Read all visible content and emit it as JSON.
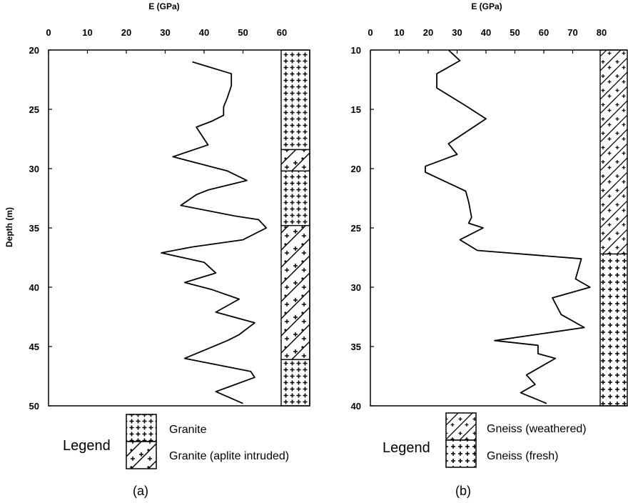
{
  "chart_data": [
    {
      "type": "line",
      "panel_label": "(a)",
      "xlabel": "E (GPa)",
      "ylabel": "Depth (m)",
      "xticks": [
        0,
        10,
        20,
        30,
        40,
        50,
        60
      ],
      "yticks": [
        20,
        25,
        30,
        35,
        40,
        45,
        50
      ],
      "xlim": [
        0,
        68
      ],
      "ylim": [
        20,
        50
      ],
      "y_inverted": true,
      "x_axis_position": "top",
      "grid": false,
      "series": [
        {
          "x": [
            37,
            47,
            47,
            46,
            45,
            45,
            42,
            38,
            40,
            41,
            32,
            46,
            51,
            41,
            38,
            34,
            48,
            54,
            56,
            50,
            37,
            29,
            40,
            43,
            35,
            42,
            49,
            43,
            53,
            49,
            46,
            35,
            52,
            53,
            43,
            50
          ],
          "y": [
            21.0,
            22.0,
            23.0,
            24.0,
            24.8,
            25.5,
            26.0,
            26.5,
            27.5,
            28.0,
            29.0,
            30.2,
            31.0,
            31.8,
            32.2,
            33.1,
            34.0,
            34.3,
            35.0,
            36.0,
            36.6,
            37.1,
            37.9,
            38.8,
            39.6,
            40.2,
            41.0,
            42.1,
            43.0,
            44.0,
            44.5,
            46.0,
            47.1,
            47.6,
            48.8,
            49.8
          ]
        }
      ],
      "lithology": [
        {
          "from": 20.0,
          "to": 28.4,
          "unit": "Granite"
        },
        {
          "from": 28.4,
          "to": 30.2,
          "unit": "Granite (aplite intruded)"
        },
        {
          "from": 30.2,
          "to": 34.8,
          "unit": "Granite"
        },
        {
          "from": 34.8,
          "to": 46.1,
          "unit": "Granite (aplite intruded)"
        },
        {
          "from": 46.1,
          "to": 50.0,
          "unit": "Granite"
        }
      ],
      "legend": {
        "title": "Legend",
        "items": [
          "Granite",
          "Granite (aplite intruded)"
        ],
        "placement": "bottom"
      }
    },
    {
      "type": "line",
      "panel_label": "(b)",
      "xlabel": "E (GPa)",
      "ylabel": "",
      "xticks": [
        0,
        10,
        20,
        30,
        40,
        50,
        60,
        70,
        80
      ],
      "yticks": [
        10,
        15,
        20,
        25,
        30,
        35,
        40
      ],
      "xlim": [
        0,
        90
      ],
      "ylim": [
        10,
        40
      ],
      "y_inverted": true,
      "x_axis_position": "top",
      "grid": false,
      "series": [
        {
          "x": [
            27,
            31,
            23,
            23,
            33,
            40,
            27,
            30,
            19,
            19,
            33,
            34,
            35,
            34,
            39,
            31,
            37,
            73,
            71,
            76,
            63,
            66,
            74,
            43,
            58,
            58,
            64,
            54,
            57,
            52,
            61
          ],
          "y": [
            10.0,
            10.9,
            12.0,
            13.2,
            14.7,
            15.8,
            17.9,
            18.8,
            19.8,
            20.3,
            21.9,
            22.8,
            24.1,
            24.6,
            25.0,
            26.0,
            26.9,
            27.6,
            29.3,
            30.0,
            30.9,
            32.3,
            33.4,
            34.5,
            34.9,
            35.6,
            36.0,
            37.4,
            38.2,
            38.9,
            39.8
          ]
        }
      ],
      "lithology": [
        {
          "from": 10.0,
          "to": 27.2,
          "unit": "Gneiss (weathered)"
        },
        {
          "from": 27.2,
          "to": 40.0,
          "unit": "Gneiss (fresh)"
        }
      ],
      "legend": {
        "title": "Legend",
        "items": [
          "Gneiss (weathered)",
          "Gneiss (fresh)"
        ],
        "placement": "bottom"
      }
    }
  ]
}
